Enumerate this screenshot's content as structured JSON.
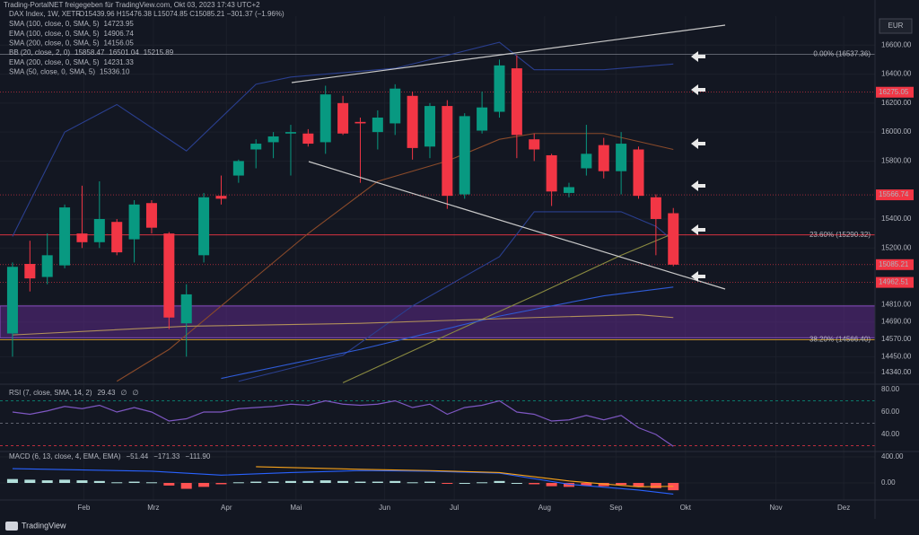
{
  "header": {
    "share_text": "Trading-PortalNET freigegeben für TradingView.com, Okt 03, 2023 17:43 UTC+2",
    "logo_text": "TradingView",
    "currency": "EUR"
  },
  "chart_data": [
    {
      "type": "candlestick",
      "title": "DAX Index, 1W, XETR",
      "quote": "O15439.96 H15476.38 L15074.85 C15085.21 −301.37 (−1.96%)",
      "indicators": [
        {
          "name": "SMA (100, close, 0, SMA, 5)",
          "values": [
            "14723.95"
          ],
          "colors": [
            "#e6e600"
          ]
        },
        {
          "name": "EMA (100, close, 0, SMA, 5)",
          "values": [
            "14906.74"
          ],
          "colors": [
            "#5b7be6"
          ]
        },
        {
          "name": "SMA (200, close, 0, SMA, 5)",
          "values": [
            "14156.05"
          ],
          "colors": [
            "#e6e600"
          ]
        },
        {
          "name": "BB (20, close, 2, 0)",
          "values": [
            "15858.47",
            "16501.04",
            "15215.89"
          ],
          "colors": [
            "#e07b39",
            "#5b7be6",
            "#5b7be6"
          ]
        },
        {
          "name": "EMA (200, close, 0, SMA, 5)",
          "values": [
            "14231.33"
          ],
          "colors": [
            "#5b7be6"
          ]
        },
        {
          "name": "SMA (50, close, 0, SMA, 5)",
          "values": [
            "15336.10"
          ],
          "colors": [
            "#e6e600"
          ]
        }
      ],
      "x": [
        0,
        1,
        2,
        3,
        4,
        5,
        6,
        7,
        8,
        9,
        10,
        11,
        12,
        13,
        14,
        15,
        16,
        17,
        18,
        19,
        20,
        21,
        22,
        23,
        24,
        25,
        26,
        27,
        28,
        29,
        30,
        31,
        32,
        33,
        34,
        35,
        36,
        37,
        38
      ],
      "open": [
        14610,
        15090,
        15000,
        15080,
        15300,
        15240,
        15380,
        15260,
        15510,
        15300,
        14680,
        15150,
        15560,
        15700,
        15880,
        15930,
        15990,
        15990,
        15930,
        16200,
        16070,
        16000,
        16060,
        16250,
        15900,
        16180,
        15570,
        16010,
        16140,
        16440,
        15950,
        15840,
        15580,
        15750,
        15910,
        15730,
        15880,
        15550,
        15440
      ],
      "high": [
        15100,
        15250,
        15300,
        15500,
        15630,
        15660,
        15400,
        15530,
        15530,
        15310,
        14950,
        15580,
        15700,
        15810,
        15950,
        16000,
        16050,
        16020,
        16320,
        16250,
        16100,
        16150,
        16330,
        16280,
        16200,
        16220,
        16130,
        16280,
        16500,
        16530,
        15990,
        15850,
        15650,
        16050,
        15960,
        16000,
        15900,
        15570,
        15476
      ],
      "low": [
        14450,
        14900,
        14950,
        15060,
        15200,
        15200,
        15150,
        15100,
        15300,
        14640,
        14450,
        15100,
        15500,
        15650,
        15750,
        15820,
        15700,
        15900,
        15850,
        15980,
        15650,
        15880,
        15980,
        15810,
        15820,
        15470,
        15540,
        15990,
        16100,
        15820,
        15800,
        15490,
        15550,
        15700,
        15680,
        15570,
        15540,
        15150,
        15074
      ],
      "close": [
        15070,
        14990,
        15150,
        15480,
        15240,
        15400,
        15170,
        15500,
        15340,
        14720,
        14880,
        15550,
        15540,
        15800,
        15920,
        15970,
        16000,
        15920,
        16260,
        15990,
        16060,
        16100,
        16300,
        15890,
        16180,
        15560,
        16110,
        16170,
        16460,
        15980,
        15880,
        15590,
        15620,
        15850,
        15730,
        15920,
        15560,
        15400,
        15085
      ],
      "up_color": "#089981",
      "down_color": "#f23645",
      "series": [
        {
          "color": "#2a3f8f",
          "x": [
            0,
            3,
            6,
            10,
            14,
            16,
            22,
            28,
            30,
            34,
            38
          ],
          "values": [
            15280,
            16000,
            16190,
            15870,
            16330,
            16380,
            16440,
            16620,
            16430,
            16430,
            16470
          ]
        },
        {
          "color": "#2a3f8f",
          "x": [
            13,
            16,
            19,
            23,
            28,
            30,
            35,
            37,
            38
          ],
          "values": [
            14280,
            14370,
            14460,
            14800,
            15140,
            15450,
            15450,
            15350,
            15250
          ]
        },
        {
          "color": "#8a4a2a",
          "x": [
            6,
            9,
            12,
            17,
            21,
            25,
            28,
            30,
            34,
            38
          ],
          "values": [
            14280,
            14500,
            14800,
            15300,
            15660,
            15800,
            15950,
            15990,
            15990,
            15880
          ]
        },
        {
          "color": "#8a8a40",
          "x": [
            19,
            25,
            30,
            35,
            38
          ],
          "values": [
            14270,
            14600,
            14870,
            15150,
            15300
          ]
        },
        {
          "color": "#2f5bd6",
          "x": [
            12,
            20,
            28,
            34,
            38
          ],
          "values": [
            14300,
            14500,
            14730,
            14870,
            14930
          ]
        },
        {
          "color": "#b0905a",
          "x": [
            0,
            10,
            20,
            30,
            36,
            38
          ],
          "values": [
            14600,
            14660,
            14680,
            14720,
            14740,
            14720
          ]
        }
      ],
      "levels": [
        {
          "value": 16537.36,
          "label": "0.00% (16537.36)",
          "color": "#787b86"
        },
        {
          "value": 15290.32,
          "label": "23.60% (15290.32)",
          "color": "#f23645"
        },
        {
          "value": 14566.4,
          "label": "38.20% (14566.40)",
          "color": "#e0a030"
        }
      ],
      "zone": [
        14580,
        14800
      ],
      "zone_color": "#5c2a86",
      "price_tags": [
        16275.05,
        15566.74,
        15085.21,
        14962.51
      ],
      "tag_color": "#f23645",
      "xlim": [
        -0.72,
        49.6
      ],
      "xticks": [
        {
          "value": 4.1,
          "label": "Feb"
        },
        {
          "value": 8.1,
          "label": "Mrz"
        },
        {
          "value": 12.3,
          "label": "Apr"
        },
        {
          "value": 16.3,
          "label": "Mai"
        },
        {
          "value": 21.4,
          "label": "Jun"
        },
        {
          "value": 25.4,
          "label": "Jul"
        },
        {
          "value": 30.6,
          "label": "Aug"
        },
        {
          "value": 34.7,
          "label": "Sep"
        },
        {
          "value": 38.7,
          "label": "Okt"
        },
        {
          "value": 43.9,
          "label": "Nov"
        },
        {
          "value": 47.8,
          "label": "Dez"
        }
      ],
      "ylim": [
        14260,
        16800
      ],
      "yticks": [
        {
          "value": 16600,
          "label": "16600.00"
        },
        {
          "value": 16400,
          "label": "16400.00"
        },
        {
          "value": 16200,
          "label": "16200.00"
        },
        {
          "value": 16000,
          "label": "16000.00"
        },
        {
          "value": 15800,
          "label": "15800.00"
        },
        {
          "value": 15400,
          "label": "15400.00"
        },
        {
          "value": 15200,
          "label": "15200.00"
        },
        {
          "value": 14810,
          "label": "14810.00"
        },
        {
          "value": 14690,
          "label": "14690.00"
        },
        {
          "value": 14570,
          "label": "14570.00"
        },
        {
          "value": 14450,
          "label": "14450.00"
        },
        {
          "value": 14340,
          "label": "14340.00"
        }
      ]
    },
    {
      "type": "line",
      "title": "RSI (7, close, SMA, 14, 2)",
      "legend_values": [
        "29.43",
        "∅",
        "∅"
      ],
      "legend_colors": [
        "#7e57c2",
        "#b2b5be",
        "#b2b5be"
      ],
      "x": [
        0,
        1,
        2,
        3,
        4,
        5,
        6,
        7,
        8,
        9,
        10,
        11,
        12,
        13,
        14,
        15,
        16,
        17,
        18,
        19,
        20,
        21,
        22,
        23,
        24,
        25,
        26,
        27,
        28,
        29,
        30,
        31,
        32,
        33,
        34,
        35,
        36,
        37,
        38
      ],
      "series": [
        {
          "color": "#7e57c2",
          "values": [
            60,
            58,
            61,
            65,
            63,
            66,
            60,
            64,
            60,
            52,
            54,
            60,
            60,
            63,
            64,
            65,
            67,
            66,
            70,
            67,
            66,
            67,
            70,
            64,
            67,
            58,
            64,
            66,
            70,
            60,
            58,
            52,
            53,
            57,
            53,
            57,
            46,
            40,
            29.43
          ]
        }
      ],
      "levels": [
        70,
        50,
        30
      ],
      "level_colors": [
        "#089981",
        "#787b86",
        "#f23645"
      ],
      "ylim": [
        24.8,
        84.8
      ],
      "yticks": [
        {
          "value": 80,
          "label": "80.00"
        },
        {
          "value": 60,
          "label": "60.00"
        },
        {
          "value": 40,
          "label": "40.00"
        }
      ]
    },
    {
      "type": "bar",
      "title": "MACD (6, 13, close, 4, EMA, EMA)",
      "legend_values": [
        "−51.44",
        "−171.33",
        "−111.90"
      ],
      "legend_colors": [
        "#f7a21b",
        "#2962ff",
        "#f23645"
      ],
      "x": [
        0,
        1,
        2,
        3,
        4,
        5,
        6,
        7,
        8,
        9,
        10,
        11,
        12,
        13,
        14,
        15,
        16,
        17,
        18,
        19,
        20,
        21,
        22,
        23,
        24,
        25,
        26,
        27,
        28,
        29,
        30,
        31,
        32,
        33,
        34,
        35,
        36,
        37,
        38
      ],
      "values": [
        60,
        50,
        40,
        50,
        40,
        30,
        10,
        20,
        10,
        -40,
        -90,
        -60,
        -20,
        10,
        20,
        20,
        30,
        30,
        40,
        30,
        20,
        20,
        30,
        10,
        20,
        -10,
        0,
        10,
        30,
        0,
        -20,
        -50,
        -60,
        -40,
        -50,
        -30,
        -60,
        -80,
        -111.9
      ],
      "up_color": "#b2dfdb",
      "down_color": "#ff5252",
      "series": [
        {
          "color": "#2962ff",
          "x": [
            0,
            8,
            12,
            16,
            20,
            24,
            28,
            32,
            36,
            38
          ],
          "values": [
            220,
            180,
            120,
            160,
            190,
            180,
            150,
            -20,
            -110,
            -171.33
          ]
        },
        {
          "color": "#f7a21b",
          "x": [
            14,
            20,
            24,
            28,
            32,
            36,
            38
          ],
          "values": [
            250,
            210,
            190,
            160,
            30,
            -60,
            -51.44
          ]
        }
      ],
      "ylim": [
        -262,
        483
      ],
      "yticks": [
        {
          "value": 400,
          "label": "400.00"
        },
        {
          "value": 0,
          "label": "0.00"
        }
      ]
    }
  ]
}
